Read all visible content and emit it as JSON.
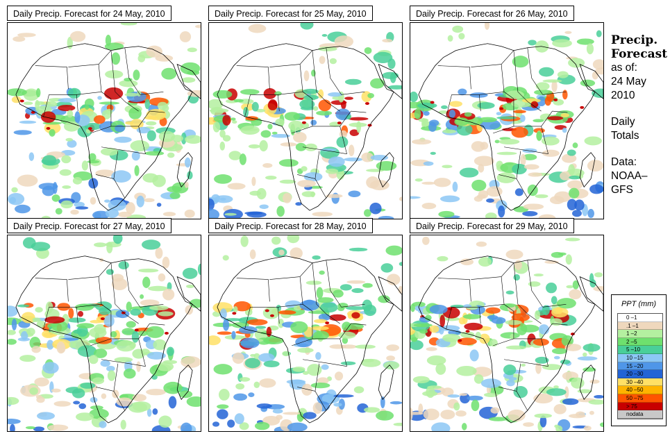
{
  "panels": [
    {
      "title": "Daily Precip. Forecast for  24 May, 2010",
      "seed": 11,
      "intensity": 1.0
    },
    {
      "title": "Daily Precip. Forecast for  25 May, 2010",
      "seed": 23,
      "intensity": 0.9
    },
    {
      "title": "Daily Precip. Forecast for  26 May, 2010",
      "seed": 37,
      "intensity": 1.0
    },
    {
      "title": "Daily Precip. Forecast for  27 May, 2010",
      "seed": 41,
      "intensity": 1.1
    },
    {
      "title": "Daily Precip. Forecast for  28 May, 2010",
      "seed": 53,
      "intensity": 1.0
    },
    {
      "title": "Daily Precip. Forecast for  29 May, 2010",
      "seed": 67,
      "intensity": 1.1
    }
  ],
  "side": {
    "title_line1": "Precip.",
    "title_line2": "Forecast",
    "asof": "as of:",
    "date_line1": "24 May",
    "date_line2": "2010",
    "daily_line1": "Daily",
    "daily_line2": "Totals",
    "data_line1": "Data:",
    "data_line2": "NOAA–",
    "data_line3": "GFS"
  },
  "legend": {
    "title": "PPT (mm)",
    "items": [
      {
        "label": "0 –1",
        "color": "#ffffff"
      },
      {
        "label": ".1 –1",
        "color": "#efd8bd"
      },
      {
        "label": "1 –2",
        "color": "#b4f0a0"
      },
      {
        "label": "2 –5",
        "color": "#6ee06e"
      },
      {
        "label": "5 –10",
        "color": "#49cf99"
      },
      {
        "label": "10 –15",
        "color": "#8cc7f5"
      },
      {
        "label": "15 –20",
        "color": "#4f96e8"
      },
      {
        "label": "20 –30",
        "color": "#2364d6"
      },
      {
        "label": "30 –40",
        "color": "#ffe066"
      },
      {
        "label": "40 –50",
        "color": "#ffb400"
      },
      {
        "label": "50 –75",
        "color": "#ff5500"
      },
      {
        "label": "> 75",
        "color": "#c80000"
      },
      {
        "label": "nodata",
        "color": "#c8c8c8"
      }
    ]
  }
}
